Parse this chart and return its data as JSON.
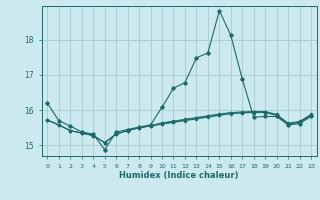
{
  "xlabel": "Humidex (Indice chaleur)",
  "xlim": [
    -0.5,
    23.5
  ],
  "ylim": [
    14.7,
    18.95
  ],
  "yticks": [
    15,
    16,
    17,
    18
  ],
  "xticks": [
    0,
    1,
    2,
    3,
    4,
    5,
    6,
    7,
    8,
    9,
    10,
    11,
    12,
    13,
    14,
    15,
    16,
    17,
    18,
    19,
    20,
    21,
    22,
    23
  ],
  "bg_color": "#cce9ed",
  "grid_color": "#aacfd4",
  "line_color": "#1a6b6b",
  "lines": [
    [
      16.2,
      15.7,
      15.55,
      15.38,
      15.32,
      14.88,
      15.38,
      15.45,
      15.52,
      15.58,
      16.08,
      16.62,
      16.78,
      17.48,
      17.62,
      18.82,
      18.12,
      16.88,
      15.8,
      15.82,
      15.82,
      15.58,
      15.62,
      15.82
    ],
    [
      15.72,
      15.58,
      15.42,
      15.35,
      15.28,
      15.08,
      15.32,
      15.42,
      15.5,
      15.55,
      15.6,
      15.65,
      15.7,
      15.75,
      15.8,
      15.85,
      15.9,
      15.92,
      15.93,
      15.93,
      15.85,
      15.6,
      15.65,
      15.85
    ],
    [
      15.72,
      15.58,
      15.42,
      15.35,
      15.28,
      15.08,
      15.32,
      15.42,
      15.5,
      15.55,
      15.62,
      15.67,
      15.72,
      15.77,
      15.82,
      15.87,
      15.91,
      15.93,
      15.94,
      15.94,
      15.86,
      15.61,
      15.66,
      15.86
    ],
    [
      15.72,
      15.58,
      15.42,
      15.35,
      15.28,
      15.08,
      15.32,
      15.42,
      15.5,
      15.56,
      15.64,
      15.69,
      15.74,
      15.79,
      15.84,
      15.89,
      15.93,
      15.95,
      15.96,
      15.96,
      15.88,
      15.63,
      15.68,
      15.88
    ]
  ]
}
